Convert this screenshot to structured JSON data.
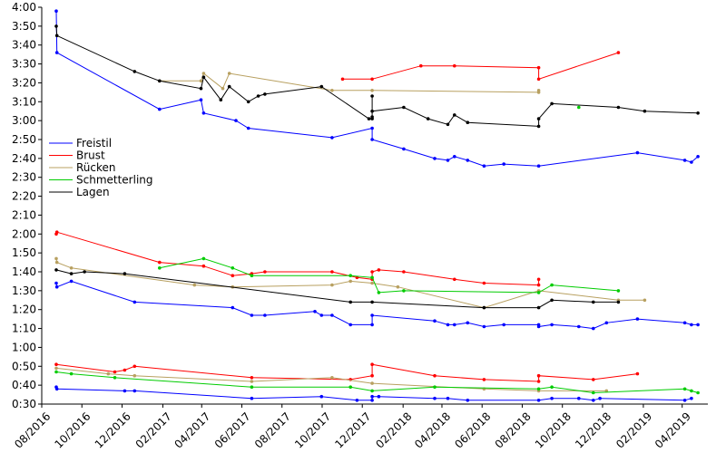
{
  "chart_data": {
    "type": "line",
    "title": "",
    "xlabel": "",
    "ylabel": "",
    "grid": false,
    "legend_position": "left-middle",
    "xlim": [
      "2016-08-01",
      "2019-05-10"
    ],
    "ylim": [
      30,
      240
    ],
    "y_unit": "seconds",
    "x_ticks": [
      {
        "date": "2016-08-01",
        "label": "08/2016"
      },
      {
        "date": "2016-10-01",
        "label": "10/2016"
      },
      {
        "date": "2016-12-01",
        "label": "12/2016"
      },
      {
        "date": "2017-02-01",
        "label": "02/2017"
      },
      {
        "date": "2017-04-01",
        "label": "04/2017"
      },
      {
        "date": "2017-06-01",
        "label": "06/2017"
      },
      {
        "date": "2017-08-01",
        "label": "08/2017"
      },
      {
        "date": "2017-10-01",
        "label": "10/2017"
      },
      {
        "date": "2017-12-01",
        "label": "12/2017"
      },
      {
        "date": "2018-02-01",
        "label": "02/2018"
      },
      {
        "date": "2018-04-01",
        "label": "04/2018"
      },
      {
        "date": "2018-06-01",
        "label": "06/2018"
      },
      {
        "date": "2018-08-01",
        "label": "08/2018"
      },
      {
        "date": "2018-10-01",
        "label": "10/2018"
      },
      {
        "date": "2018-12-01",
        "label": "12/2018"
      },
      {
        "date": "2019-02-01",
        "label": "02/2019"
      },
      {
        "date": "2019-04-01",
        "label": "04/2019"
      }
    ],
    "y_ticks": [
      {
        "value": 30,
        "label": "0:30"
      },
      {
        "value": 40,
        "label": "0:40"
      },
      {
        "value": 50,
        "label": "0:50"
      },
      {
        "value": 60,
        "label": "1:00"
      },
      {
        "value": 70,
        "label": "1:10"
      },
      {
        "value": 80,
        "label": "1:20"
      },
      {
        "value": 90,
        "label": "1:30"
      },
      {
        "value": 100,
        "label": "1:40"
      },
      {
        "value": 110,
        "label": "1:50"
      },
      {
        "value": 120,
        "label": "2:00"
      },
      {
        "value": 130,
        "label": "2:10"
      },
      {
        "value": 140,
        "label": "2:20"
      },
      {
        "value": 150,
        "label": "2:30"
      },
      {
        "value": 160,
        "label": "2:40"
      },
      {
        "value": 170,
        "label": "2:50"
      },
      {
        "value": 180,
        "label": "3:00"
      },
      {
        "value": 190,
        "label": "3:10"
      },
      {
        "value": 200,
        "label": "3:20"
      },
      {
        "value": 210,
        "label": "3:30"
      },
      {
        "value": 220,
        "label": "3:40"
      },
      {
        "value": 230,
        "label": "3:50"
      },
      {
        "value": 240,
        "label": "4:00"
      }
    ],
    "series": [
      {
        "name": "Freistil",
        "color": "#0000ff",
        "lines": [
          [
            [
              "2016-08-23",
              238
            ],
            [
              "2016-08-24",
              216
            ],
            [
              "2017-01-27",
              186
            ],
            [
              "2017-03-31",
              191
            ],
            [
              "2017-04-04",
              184
            ],
            [
              "2017-05-23",
              180
            ],
            [
              "2017-06-11",
              176
            ],
            [
              "2017-10-16",
              171
            ],
            [
              "2017-12-16",
              176
            ],
            [
              "2017-12-16",
              170
            ],
            [
              "2018-02-02",
              165
            ],
            [
              "2018-03-21",
              160
            ],
            [
              "2018-04-10",
              159
            ],
            [
              "2018-04-20",
              161
            ],
            [
              "2018-05-10",
              159
            ],
            [
              "2018-06-04",
              156
            ],
            [
              "2018-07-04",
              157
            ],
            [
              "2018-08-26",
              156
            ],
            [
              "2019-01-23",
              163
            ],
            [
              "2019-04-05",
              159
            ],
            [
              "2019-04-15",
              158
            ],
            [
              "2019-04-25",
              161
            ]
          ],
          [
            [
              "2016-08-23",
              94
            ],
            [
              "2016-08-24",
              92
            ],
            [
              "2016-09-15",
              95
            ],
            [
              "2016-12-20",
              84
            ],
            [
              "2017-05-18",
              81
            ],
            [
              "2017-06-16",
              77
            ],
            [
              "2017-07-06",
              77
            ],
            [
              "2017-09-20",
              79
            ],
            [
              "2017-09-30",
              77
            ],
            [
              "2017-10-16",
              77
            ],
            [
              "2017-11-13",
              72
            ],
            [
              "2017-12-16",
              72
            ],
            [
              "2017-12-16",
              77
            ],
            [
              "2018-03-21",
              74
            ],
            [
              "2018-04-10",
              72
            ],
            [
              "2018-04-20",
              72
            ],
            [
              "2018-05-10",
              73
            ],
            [
              "2018-06-04",
              71
            ],
            [
              "2018-07-04",
              72
            ],
            [
              "2018-08-26",
              72
            ],
            [
              "2018-08-26",
              71
            ],
            [
              "2018-09-15",
              72
            ],
            [
              "2018-10-26",
              71
            ],
            [
              "2018-11-17",
              70
            ],
            [
              "2018-12-07",
              73
            ],
            [
              "2019-01-23",
              75
            ],
            [
              "2019-04-05",
              73
            ],
            [
              "2019-04-15",
              72
            ],
            [
              "2019-04-25",
              72
            ]
          ],
          [
            [
              "2016-08-23",
              39
            ],
            [
              "2016-08-24",
              38
            ],
            [
              "2016-12-05",
              37
            ],
            [
              "2016-12-20",
              37
            ],
            [
              "2017-06-16",
              33
            ],
            [
              "2017-09-30",
              34
            ],
            [
              "2017-11-23",
              32
            ],
            [
              "2017-12-16",
              32
            ],
            [
              "2017-12-16",
              34
            ],
            [
              "2017-12-26",
              34
            ],
            [
              "2018-03-21",
              33
            ],
            [
              "2018-04-10",
              33
            ],
            [
              "2018-05-10",
              32
            ],
            [
              "2018-08-26",
              32
            ],
            [
              "2018-09-15",
              33
            ],
            [
              "2018-10-26",
              33
            ],
            [
              "2018-11-17",
              32
            ],
            [
              "2018-11-27",
              33
            ],
            [
              "2019-04-05",
              32
            ],
            [
              "2019-04-15",
              33
            ]
          ]
        ]
      },
      {
        "name": "Brust",
        "color": "#ff0000",
        "lines": [
          [
            [
              "2017-11-01",
              202
            ],
            [
              "2017-12-16",
              202
            ],
            [
              "2018-02-28",
              209
            ],
            [
              "2018-04-20",
              209
            ],
            [
              "2018-08-26",
              208
            ],
            [
              "2018-08-26",
              202
            ],
            [
              "2018-12-25",
              216
            ]
          ],
          [
            [
              "2016-08-23",
              120
            ],
            [
              "2016-08-24",
              121
            ],
            [
              "2017-01-27",
              105
            ],
            [
              "2017-04-04",
              103
            ],
            [
              "2017-05-18",
              98
            ],
            [
              "2017-06-16",
              99
            ],
            [
              "2017-07-06",
              100
            ],
            [
              "2017-10-16",
              100
            ],
            [
              "2017-11-23",
              97
            ],
            [
              "2017-12-16",
              96
            ],
            [
              "2017-12-16",
              100
            ],
            [
              "2017-12-26",
              101
            ],
            [
              "2018-02-02",
              100
            ],
            [
              "2018-04-20",
              96
            ],
            [
              "2018-06-04",
              94
            ],
            [
              "2018-08-26",
              93
            ],
            [
              "2018-08-26",
              96
            ]
          ],
          [
            [
              "2016-08-23",
              51
            ],
            [
              "2016-11-20",
              47
            ],
            [
              "2016-12-05",
              48
            ],
            [
              "2016-12-20",
              50
            ],
            [
              "2017-06-16",
              44
            ],
            [
              "2017-11-13",
              43
            ],
            [
              "2017-12-16",
              45
            ],
            [
              "2017-12-16",
              51
            ],
            [
              "2018-03-21",
              45
            ],
            [
              "2018-06-04",
              43
            ],
            [
              "2018-08-26",
              42
            ],
            [
              "2018-08-26",
              45
            ],
            [
              "2018-11-17",
              43
            ],
            [
              "2019-01-23",
              46
            ]
          ]
        ]
      },
      {
        "name": "Rücken",
        "color": "#b8a060",
        "lines": [
          [
            [
              "2017-01-27",
              201
            ],
            [
              "2017-03-31",
              201
            ],
            [
              "2017-04-04",
              205
            ],
            [
              "2017-05-03",
              197
            ],
            [
              "2017-05-13",
              205
            ],
            [
              "2017-10-16",
              196
            ],
            [
              "2017-12-16",
              196
            ],
            [
              "2018-08-26",
              195
            ],
            [
              "2018-08-26",
              196
            ]
          ],
          [
            [
              "2016-08-23",
              107
            ],
            [
              "2016-08-24",
              105
            ],
            [
              "2016-09-15",
              102
            ],
            [
              "2017-03-21",
              93
            ],
            [
              "2017-05-18",
              92
            ],
            [
              "2017-10-16",
              93
            ],
            [
              "2017-11-13",
              95
            ],
            [
              "2017-12-16",
              94
            ],
            [
              "2018-01-24",
              92
            ],
            [
              "2018-06-04",
              81
            ],
            [
              "2018-08-26",
              90
            ],
            [
              "2018-12-25",
              85
            ],
            [
              "2019-02-03",
              85
            ]
          ],
          [
            [
              "2016-08-23",
              49
            ],
            [
              "2016-11-10",
              46
            ],
            [
              "2016-12-20",
              45
            ],
            [
              "2017-06-16",
              42
            ],
            [
              "2017-10-16",
              44
            ],
            [
              "2017-12-16",
              41
            ],
            [
              "2018-06-04",
              38
            ],
            [
              "2018-08-26",
              37
            ],
            [
              "2018-12-07",
              37
            ]
          ]
        ]
      },
      {
        "name": "Schmetterling",
        "color": "#00cc00",
        "lines": [
          [
            [
              "2018-10-26",
              187
            ]
          ],
          [
            [
              "2017-01-27",
              102
            ],
            [
              "2017-04-04",
              107
            ],
            [
              "2017-05-18",
              102
            ],
            [
              "2017-06-16",
              98
            ],
            [
              "2017-11-13",
              98
            ],
            [
              "2017-12-16",
              97
            ],
            [
              "2017-12-26",
              89
            ],
            [
              "2018-02-02",
              90
            ],
            [
              "2018-08-26",
              89
            ],
            [
              "2018-09-15",
              93
            ],
            [
              "2018-12-25",
              90
            ]
          ],
          [
            [
              "2016-08-23",
              47
            ],
            [
              "2016-09-15",
              46
            ],
            [
              "2016-11-20",
              44
            ],
            [
              "2017-06-16",
              39
            ],
            [
              "2017-11-13",
              39
            ],
            [
              "2017-12-16",
              37
            ],
            [
              "2018-03-21",
              39
            ],
            [
              "2018-08-26",
              38
            ],
            [
              "2018-09-15",
              39
            ],
            [
              "2018-11-17",
              36
            ],
            [
              "2019-04-05",
              38
            ],
            [
              "2019-04-15",
              37
            ],
            [
              "2019-04-25",
              36
            ]
          ]
        ]
      },
      {
        "name": "Lagen",
        "color": "#000000",
        "lines": [
          [
            [
              "2016-08-23",
              230
            ],
            [
              "2016-08-24",
              225
            ],
            [
              "2016-12-20",
              206
            ],
            [
              "2017-01-27",
              201
            ],
            [
              "2017-03-31",
              197
            ],
            [
              "2017-04-04",
              203
            ],
            [
              "2017-04-30",
              191
            ],
            [
              "2017-05-13",
              198
            ],
            [
              "2017-06-11",
              190
            ],
            [
              "2017-06-26",
              193
            ],
            [
              "2017-07-06",
              194
            ],
            [
              "2017-09-30",
              198
            ],
            [
              "2017-12-11",
              181
            ],
            [
              "2017-12-16",
              181
            ],
            [
              "2017-12-16",
              193
            ],
            [
              "2017-12-16",
              182
            ],
            [
              "2017-12-16",
              185
            ],
            [
              "2018-02-02",
              187
            ],
            [
              "2018-03-11",
              181
            ],
            [
              "2018-04-10",
              178
            ],
            [
              "2018-04-20",
              183
            ],
            [
              "2018-05-10",
              179
            ],
            [
              "2018-08-26",
              177
            ],
            [
              "2018-08-26",
              181
            ],
            [
              "2018-09-15",
              189
            ],
            [
              "2018-12-25",
              187
            ],
            [
              "2019-02-03",
              185
            ],
            [
              "2019-04-25",
              184
            ]
          ],
          [
            [
              "2016-08-23",
              101
            ],
            [
              "2016-09-15",
              99
            ],
            [
              "2016-10-05",
              100
            ],
            [
              "2016-12-05",
              99
            ],
            [
              "2017-11-13",
              84
            ],
            [
              "2017-12-16",
              84
            ],
            [
              "2018-06-04",
              81
            ],
            [
              "2018-08-26",
              81
            ],
            [
              "2018-09-15",
              85
            ],
            [
              "2018-11-17",
              84
            ],
            [
              "2018-12-25",
              84
            ]
          ]
        ]
      }
    ]
  }
}
